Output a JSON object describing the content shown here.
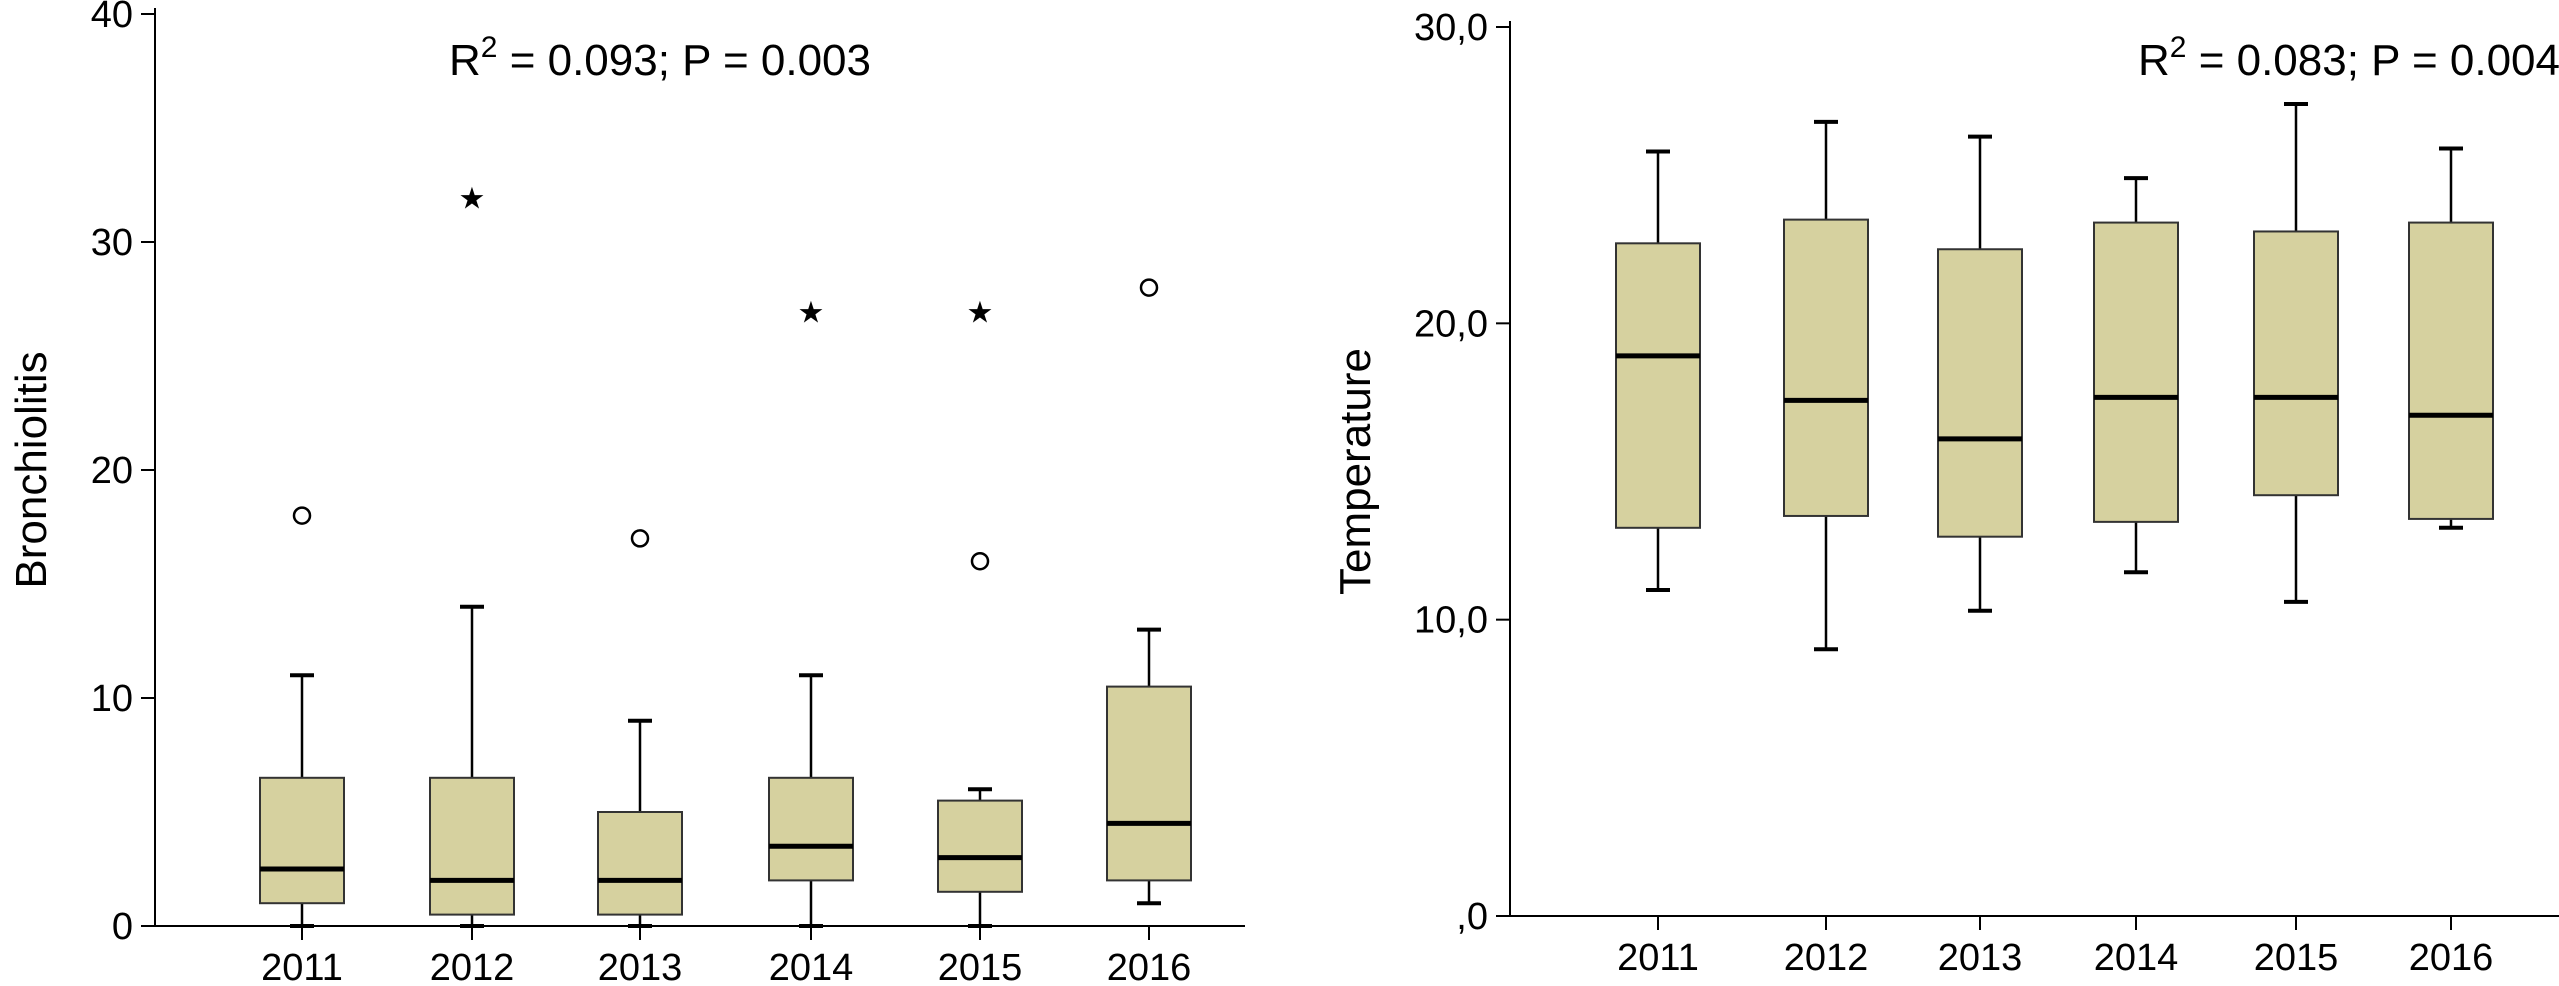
{
  "chart_data": [
    {
      "type": "box",
      "ylabel": "Bronchiolitis",
      "annotation": {
        "prefix": "R",
        "sup": "2",
        "rest": " = 0.093; P = 0.003"
      },
      "ylim": [
        0,
        40
      ],
      "yticks": [
        0,
        10,
        20,
        30,
        40
      ],
      "ytick_labels": [
        "0",
        "10",
        "20",
        "30",
        "40"
      ],
      "categories": [
        "2011",
        "2012",
        "2013",
        "2014",
        "2015",
        "2016"
      ],
      "boxes": [
        {
          "min": 0,
          "q1": 1,
          "median": 2.5,
          "q3": 6.5,
          "max": 11,
          "outliers": [
            {
              "value": 18,
              "marker": "circle"
            }
          ]
        },
        {
          "min": 0,
          "q1": 0.5,
          "median": 2,
          "q3": 6.5,
          "max": 14,
          "outliers": [
            {
              "value": 32,
              "marker": "star"
            }
          ]
        },
        {
          "min": 0,
          "q1": 0.5,
          "median": 2,
          "q3": 5,
          "max": 9,
          "outliers": [
            {
              "value": 17,
              "marker": "circle"
            }
          ]
        },
        {
          "min": 0,
          "q1": 2,
          "median": 3.5,
          "q3": 6.5,
          "max": 11,
          "outliers": [
            {
              "value": 27,
              "marker": "star"
            }
          ]
        },
        {
          "min": 0,
          "q1": 1.5,
          "median": 3,
          "q3": 5.5,
          "max": 6,
          "outliers": [
            {
              "value": 16,
              "marker": "circle"
            },
            {
              "value": 27,
              "marker": "star"
            }
          ]
        },
        {
          "min": 1,
          "q1": 2,
          "median": 4.5,
          "q3": 10.5,
          "max": 13,
          "outliers": [
            {
              "value": 28,
              "marker": "circle"
            }
          ]
        }
      ],
      "box_color": "#d6d19f"
    },
    {
      "type": "box",
      "ylabel": "Temperature",
      "annotation": {
        "prefix": "R",
        "sup": "2",
        "rest": " = 0.083; P = 0.004"
      },
      "ylim": [
        0,
        30
      ],
      "yticks": [
        0,
        10,
        20,
        30
      ],
      "ytick_labels": [
        ",0",
        "10,0",
        "20,0",
        "30,0"
      ],
      "categories": [
        "2011",
        "2012",
        "2013",
        "2014",
        "2015",
        "2016"
      ],
      "boxes": [
        {
          "min": 11.0,
          "q1": 13.1,
          "median": 18.9,
          "q3": 22.7,
          "max": 25.8,
          "outliers": []
        },
        {
          "min": 9.0,
          "q1": 13.5,
          "median": 17.4,
          "q3": 23.5,
          "max": 26.8,
          "outliers": []
        },
        {
          "min": 10.3,
          "q1": 12.8,
          "median": 16.1,
          "q3": 22.5,
          "max": 26.3,
          "outliers": []
        },
        {
          "min": 11.6,
          "q1": 13.3,
          "median": 17.5,
          "q3": 23.4,
          "max": 24.9,
          "outliers": []
        },
        {
          "min": 10.6,
          "q1": 14.2,
          "median": 17.5,
          "q3": 23.1,
          "max": 27.4,
          "outliers": []
        },
        {
          "min": 13.1,
          "q1": 13.4,
          "median": 16.9,
          "q3": 23.4,
          "max": 25.9,
          "outliers": []
        }
      ],
      "box_color": "#d6d19f"
    }
  ]
}
